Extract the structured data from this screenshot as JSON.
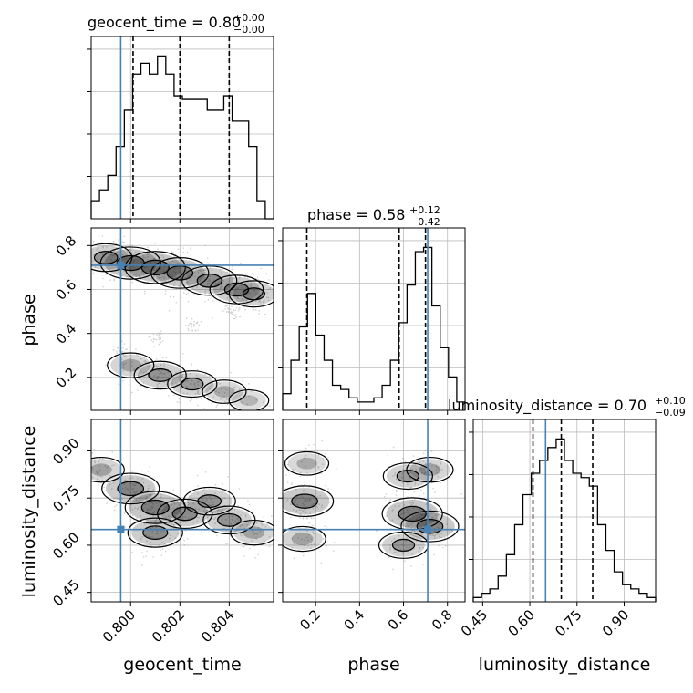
{
  "chart_data": {
    "type": "corner",
    "parameters": [
      "geocent_time",
      "phase",
      "luminosity_distance"
    ],
    "truths": {
      "geocent_time": 0.7996,
      "phase": 0.71,
      "luminosity_distance": 0.65
    },
    "grid": true,
    "panel_titles": [
      {
        "param": "geocent_time",
        "text": "geocent_time = 0.80",
        "sup": "+0.00",
        "sub": "−0.00"
      },
      {
        "param": "phase",
        "text": "phase = 0.58",
        "sup": "+0.12",
        "sub": "−0.42"
      },
      {
        "param": "luminosity_distance",
        "text": "luminosity_distance = 0.70",
        "sup": "+0.10",
        "sub": "−0.09"
      }
    ],
    "axes": {
      "geocent_time": {
        "range": [
          0.7984,
          0.8058
        ],
        "ticks": [
          0.8,
          0.802,
          0.804
        ],
        "tick_labels": [
          "0.800",
          "0.802",
          "0.804"
        ],
        "xlabel": "geocent_time"
      },
      "phase": {
        "range": [
          0.05,
          0.88
        ],
        "ticks": [
          0.2,
          0.4,
          0.6,
          0.8
        ],
        "tick_labels": [
          "0.2",
          "0.4",
          "0.6",
          "0.8"
        ],
        "xlabel": "phase",
        "ylabel": "phase"
      },
      "luminosity_distance": {
        "range": [
          0.42,
          1.0
        ],
        "ticks": [
          0.45,
          0.6,
          0.75,
          0.9
        ],
        "tick_labels": [
          "0.45",
          "0.60",
          "0.75",
          "0.90"
        ],
        "xlabel": "luminosity_distance",
        "ylabel": "luminosity_distance"
      }
    },
    "histograms": [
      {
        "param": "geocent_time",
        "quantiles": [
          0.8001,
          0.802,
          0.804
        ],
        "counts": [
          5,
          8,
          12,
          20,
          30,
          40,
          43,
          40,
          45,
          40,
          34,
          33,
          33,
          33,
          30,
          30,
          34,
          27,
          27,
          20,
          5,
          0
        ]
      },
      {
        "param": "phase",
        "quantiles": [
          0.16,
          0.58,
          0.7
        ],
        "counts": [
          4,
          12,
          20,
          28,
          18,
          12,
          6,
          5,
          3,
          2,
          2,
          3,
          6,
          12,
          21,
          30,
          38,
          39,
          25,
          15,
          8,
          2
        ]
      },
      {
        "param": "luminosity_distance",
        "quantiles": [
          0.61,
          0.7,
          0.8
        ],
        "counts": [
          1,
          2,
          3,
          6,
          11,
          18,
          25,
          30,
          33,
          36,
          38,
          33,
          30,
          29,
          27,
          18,
          12,
          7,
          4,
          3,
          2,
          1
        ]
      }
    ],
    "joint_panels": [
      {
        "x": "geocent_time",
        "y": "phase",
        "density": [
          {
            "x": 0.799,
            "y": 0.745,
            "w": 0.7
          },
          {
            "x": 0.8,
            "y": 0.72,
            "w": 1.0
          },
          {
            "x": 0.801,
            "y": 0.7,
            "w": 1.0
          },
          {
            "x": 0.802,
            "y": 0.675,
            "w": 0.9
          },
          {
            "x": 0.8032,
            "y": 0.64,
            "w": 0.8
          },
          {
            "x": 0.8043,
            "y": 0.6,
            "w": 0.75
          },
          {
            "x": 0.805,
            "y": 0.58,
            "w": 0.6
          },
          {
            "x": 0.8,
            "y": 0.255,
            "w": 0.5
          },
          {
            "x": 0.8012,
            "y": 0.21,
            "w": 0.7
          },
          {
            "x": 0.8025,
            "y": 0.17,
            "w": 0.6
          },
          {
            "x": 0.8038,
            "y": 0.135,
            "w": 0.4
          },
          {
            "x": 0.8048,
            "y": 0.095,
            "w": 0.25
          }
        ],
        "bridge": [
          {
            "x": 0.8052,
            "y": 0.56
          },
          {
            "x": 0.804,
            "y": 0.5
          },
          {
            "x": 0.8025,
            "y": 0.44
          },
          {
            "x": 0.801,
            "y": 0.38
          },
          {
            "x": 0.7996,
            "y": 0.32
          }
        ]
      },
      {
        "x": "geocent_time",
        "y": "luminosity_distance",
        "density": [
          {
            "x": 0.7988,
            "y": 0.84,
            "w": 0.5
          },
          {
            "x": 0.8,
            "y": 0.78,
            "w": 0.9
          },
          {
            "x": 0.801,
            "y": 0.72,
            "w": 1.0
          },
          {
            "x": 0.801,
            "y": 0.64,
            "w": 0.8
          },
          {
            "x": 0.8022,
            "y": 0.7,
            "w": 0.8
          },
          {
            "x": 0.8032,
            "y": 0.74,
            "w": 0.7
          },
          {
            "x": 0.804,
            "y": 0.68,
            "w": 0.7
          },
          {
            "x": 0.805,
            "y": 0.64,
            "w": 0.5
          }
        ]
      },
      {
        "x": "phase",
        "y": "luminosity_distance",
        "density": [
          {
            "x": 0.15,
            "y": 0.74,
            "w": 0.9
          },
          {
            "x": 0.14,
            "y": 0.62,
            "w": 0.5
          },
          {
            "x": 0.16,
            "y": 0.86,
            "w": 0.4
          },
          {
            "x": 0.64,
            "y": 0.7,
            "w": 1.0
          },
          {
            "x": 0.72,
            "y": 0.66,
            "w": 0.9
          },
          {
            "x": 0.62,
            "y": 0.82,
            "w": 0.6
          },
          {
            "x": 0.72,
            "y": 0.84,
            "w": 0.5
          },
          {
            "x": 0.6,
            "y": 0.6,
            "w": 0.6
          }
        ]
      }
    ],
    "colors": {
      "truth": "#4682b4",
      "hist": "#000000",
      "grid": "#bbbbbb",
      "density": "#000000",
      "samples": "#999999"
    }
  }
}
